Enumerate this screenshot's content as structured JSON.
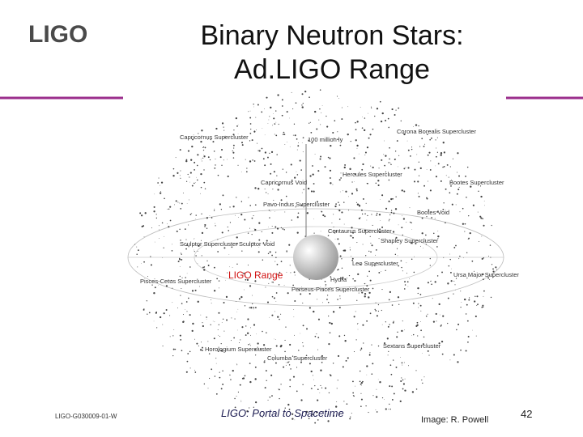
{
  "header": {
    "logo": "LIGO",
    "title_lines": [
      "Binary Neutron Stars:",
      "Ad.LIGO Range"
    ]
  },
  "map": {
    "scale_label": "100 million ly",
    "range_label": "LIGO Range",
    "labels": [
      "Corona Borealis Supercluster",
      "Capricornus Supercluster",
      "Hercules Supercluster",
      "Capricornus Void",
      "Bootes Supercluster",
      "Pavo-Indus Supercluster",
      "Bootes Void",
      "Centaurus Supercluster",
      "Sculptor Supercluster",
      "Sculptor Void",
      "Shapley Supercluster",
      "Leo Supercluster",
      "Ursa Major Supercluster",
      "Pisces-Cetus Supercluster",
      "Hydra",
      "Perseus-Pisces Supercluster",
      "Horologium Supercluster",
      "Columba Supercluster",
      "Sextans Supercluster"
    ]
  },
  "footer": {
    "doc_id": "LIGO-G030009-01-W",
    "tagline": "LIGO: Portal to Spacetime",
    "credit": "Image: R. Powell",
    "page": "42"
  }
}
